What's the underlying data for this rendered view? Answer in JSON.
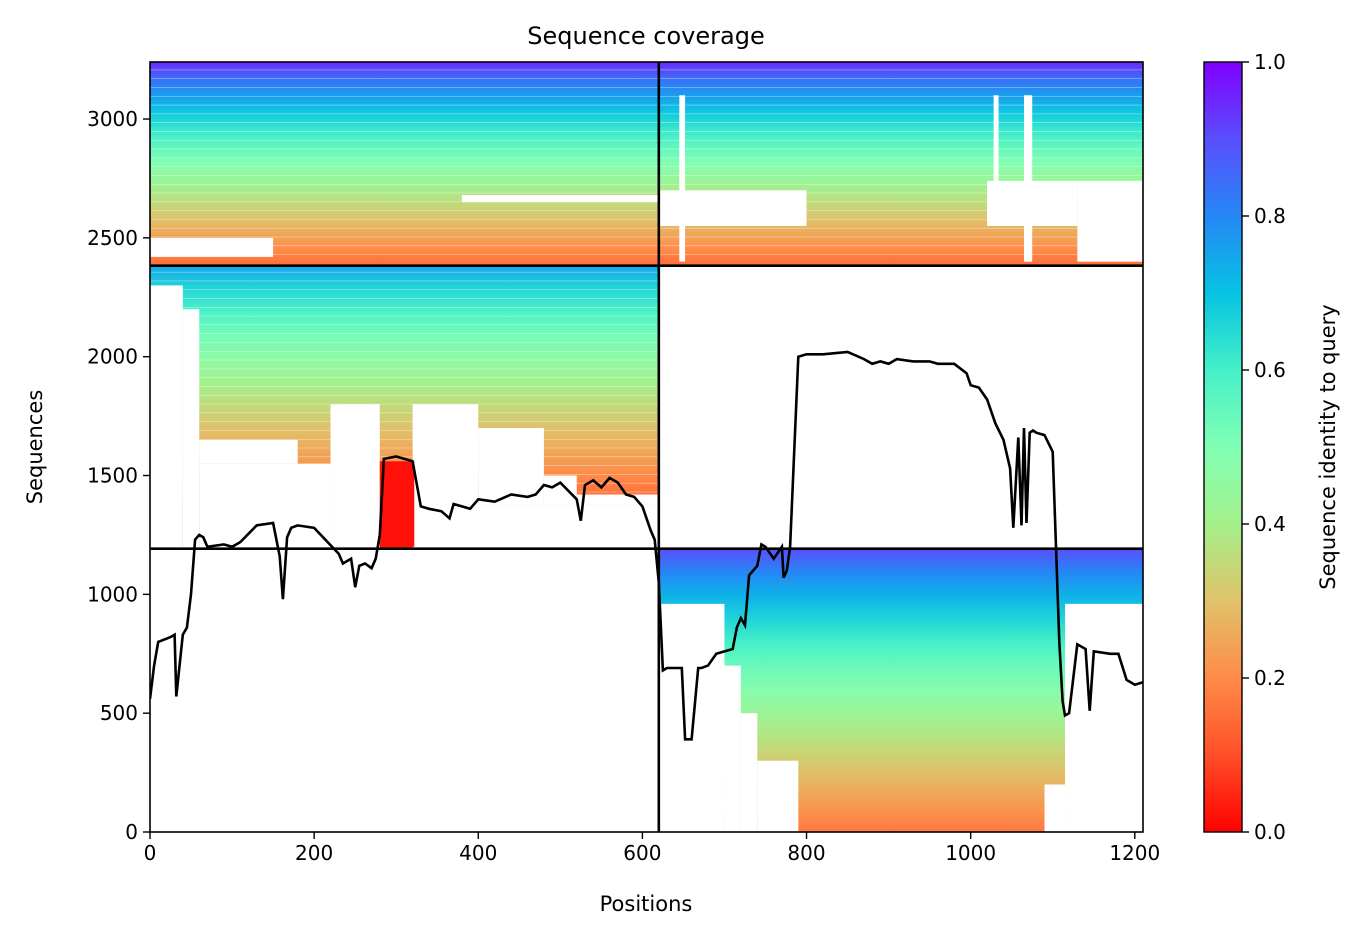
{
  "chart_data": {
    "type": "heatmap",
    "title": "Sequence coverage",
    "xlabel": "Positions",
    "ylabel": "Sequences",
    "xlim": [
      0,
      1210
    ],
    "ylim": [
      0,
      3240
    ],
    "xticks": [
      0,
      200,
      400,
      600,
      800,
      1000,
      1200
    ],
    "yticks": [
      0,
      500,
      1000,
      1500,
      2000,
      2500,
      3000
    ],
    "colormap": "rainbow",
    "colorbar": {
      "label": "Sequence identity to query",
      "range": [
        0.0,
        1.0
      ],
      "ticks": [
        "0.0",
        "0.2",
        "0.4",
        "0.6",
        "0.8",
        "1.0"
      ]
    },
    "block_boundaries": {
      "x": [
        620
      ],
      "y": [
        1192,
        2383
      ]
    },
    "coverage_blocks": [
      {
        "x": [
          0,
          620
        ],
        "y": [
          2383,
          3240
        ],
        "identity_top": 0.95,
        "identity_bottom": 0.15
      },
      {
        "x": [
          620,
          1210
        ],
        "y": [
          2383,
          3240
        ],
        "identity_top": 0.95,
        "identity_bottom": 0.15
      },
      {
        "x": [
          0,
          620
        ],
        "y": [
          1192,
          2383
        ],
        "identity_top": 0.75,
        "identity_bottom": 0.05
      },
      {
        "x": [
          620,
          1210
        ],
        "y": [
          0,
          1192
        ],
        "identity_top": 0.9,
        "identity_bottom": 0.17
      }
    ],
    "coverage_line": {
      "x": [
        0,
        5,
        10,
        25,
        30,
        32,
        40,
        45,
        50,
        55,
        60,
        65,
        70,
        90,
        100,
        110,
        130,
        150,
        158,
        162,
        167,
        172,
        180,
        200,
        230,
        235,
        245,
        250,
        255,
        262,
        270,
        275,
        280,
        285,
        300,
        320,
        330,
        340,
        355,
        365,
        370,
        380,
        390,
        400,
        420,
        440,
        460,
        470,
        480,
        490,
        500,
        520,
        525,
        530,
        540,
        550,
        560,
        570,
        580,
        590,
        600,
        610,
        615,
        620,
        625,
        630,
        640,
        648,
        652,
        660,
        668,
        672,
        680,
        690,
        700,
        710,
        715,
        720,
        725,
        730,
        740,
        745,
        750,
        760,
        770,
        772,
        776,
        780,
        790,
        800,
        820,
        850,
        870,
        880,
        890,
        900,
        910,
        930,
        950,
        960,
        980,
        995,
        1000,
        1010,
        1020,
        1030,
        1040,
        1048,
        1052,
        1058,
        1062,
        1065,
        1068,
        1072,
        1076,
        1080,
        1090,
        1100,
        1104,
        1108,
        1112,
        1115,
        1120,
        1130,
        1140,
        1145,
        1150,
        1170,
        1180,
        1190,
        1200,
        1210
      ],
      "y": [
        560,
        700,
        800,
        820,
        830,
        570,
        830,
        860,
        1000,
        1230,
        1250,
        1240,
        1200,
        1210,
        1200,
        1220,
        1290,
        1300,
        1160,
        980,
        1240,
        1280,
        1290,
        1280,
        1170,
        1130,
        1150,
        1030,
        1120,
        1130,
        1110,
        1150,
        1250,
        1570,
        1580,
        1560,
        1370,
        1360,
        1350,
        1320,
        1380,
        1370,
        1360,
        1400,
        1390,
        1420,
        1410,
        1420,
        1460,
        1450,
        1470,
        1400,
        1310,
        1460,
        1480,
        1450,
        1490,
        1470,
        1420,
        1410,
        1370,
        1270,
        1230,
        1050,
        680,
        690,
        690,
        690,
        390,
        390,
        690,
        690,
        700,
        750,
        760,
        770,
        860,
        900,
        870,
        1080,
        1120,
        1210,
        1200,
        1150,
        1200,
        1070,
        1100,
        1200,
        2000,
        2010,
        2010,
        2020,
        1990,
        1970,
        1980,
        1970,
        1990,
        1980,
        1980,
        1970,
        1970,
        1930,
        1880,
        1870,
        1820,
        1720,
        1650,
        1530,
        1280,
        1660,
        1290,
        1700,
        1300,
        1680,
        1690,
        1680,
        1670,
        1600,
        1200,
        800,
        550,
        490,
        500,
        790,
        770,
        510,
        760,
        750,
        750,
        640,
        620,
        630
      ]
    }
  }
}
